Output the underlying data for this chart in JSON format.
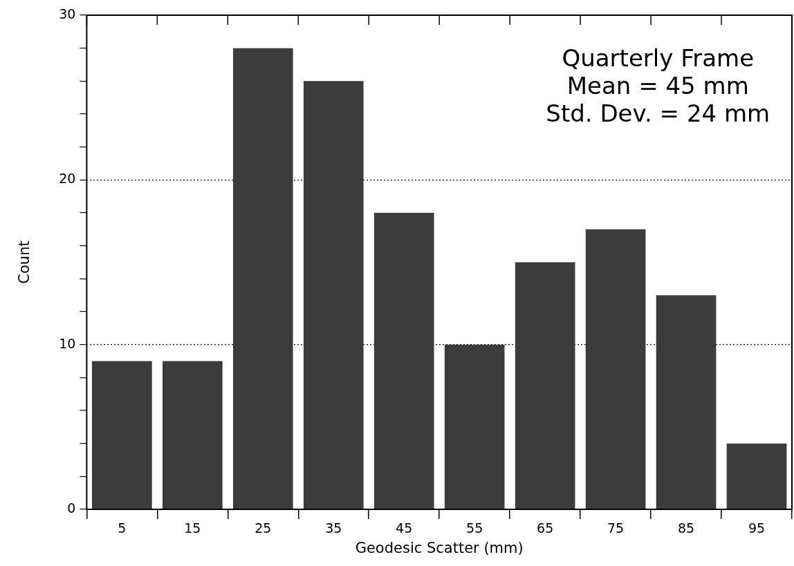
{
  "chart_data": {
    "type": "bar",
    "xlabel": "Geodesic Scatter (mm)",
    "ylabel": "Count",
    "categories": [
      "5",
      "15",
      "25",
      "35",
      "45",
      "55",
      "65",
      "75",
      "85",
      "95"
    ],
    "values": [
      9,
      9,
      28,
      26,
      18,
      10,
      15,
      17,
      13,
      4
    ],
    "color": "#3c3c3c",
    "ylim": [
      0,
      30
    ],
    "yticks": [
      0,
      {
        "value": 2,
        "label": null
      },
      {
        "value": 4,
        "label": null
      },
      {
        "value": 6,
        "label": null
      },
      {
        "value": 8,
        "label": null
      },
      10,
      {
        "value": 12,
        "label": null
      },
      {
        "value": 14,
        "label": null
      },
      {
        "value": 16,
        "label": null
      },
      {
        "value": 18,
        "label": null
      },
      20,
      {
        "value": 22,
        "label": null
      },
      {
        "value": 24,
        "label": null
      },
      {
        "value": 26,
        "label": null
      },
      {
        "value": 28,
        "label": null
      },
      30
    ],
    "grid": "y",
    "annotations": [
      "Quarterly Frame",
      "Mean = 45 mm",
      "Std. Dev. = 24 mm"
    ]
  }
}
